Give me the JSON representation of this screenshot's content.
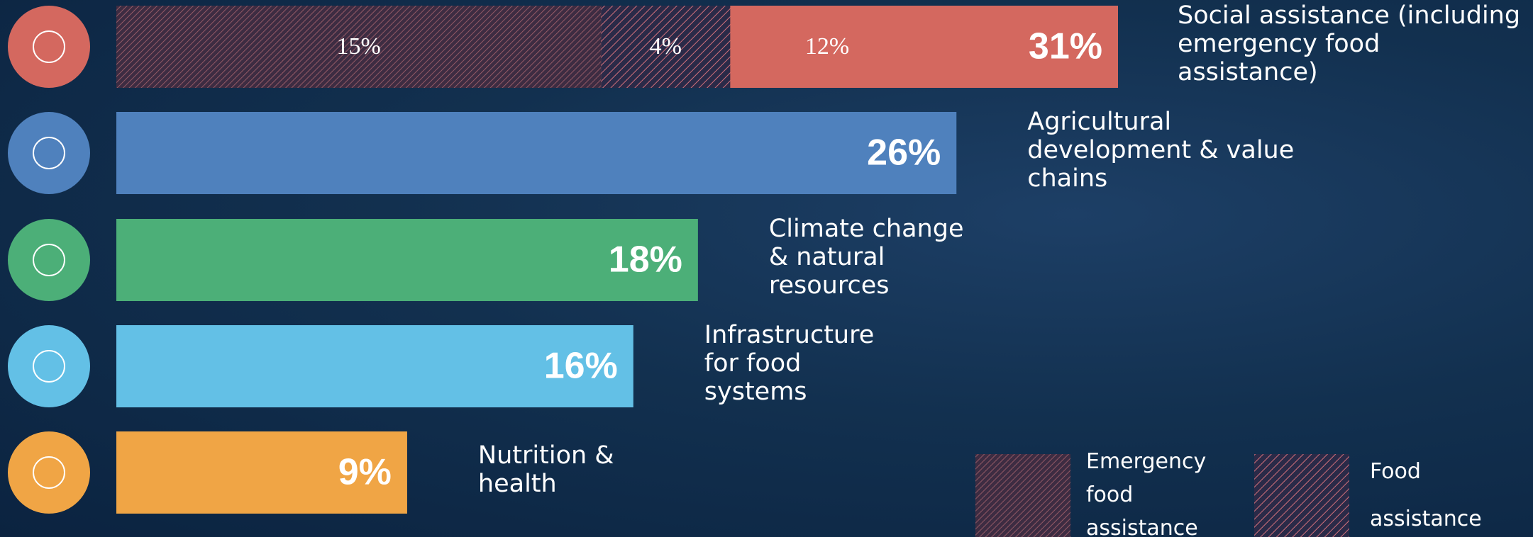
{
  "chart_data": {
    "type": "bar",
    "orientation": "horizontal",
    "categories": [
      "Social assistance (including emergency food assistance)",
      "Agricultural development & value chains",
      "Climate change & natural resources",
      "Infrastructure for food systems",
      "Nutrition & health"
    ],
    "values": [
      31,
      26,
      18,
      16,
      9
    ],
    "value_labels": [
      "31%",
      "26%",
      "18%",
      "16%",
      "9%"
    ],
    "colors": [
      "#d4685f",
      "#4f81bd",
      "#4caf78",
      "#63c0e6",
      "#f0a545"
    ],
    "segments": [
      {
        "name": "Emergency food assistance",
        "value": 15,
        "value_label": "15%",
        "color": "#3d2c42",
        "hatch": "#a8646e"
      },
      {
        "name": "Food assistance",
        "value": 4,
        "value_label": "4%",
        "color": "#2a2a48",
        "hatch": "#d0707a"
      },
      {
        "value": 12,
        "value_label": "12%",
        "color": "#d4685f"
      }
    ]
  }
}
